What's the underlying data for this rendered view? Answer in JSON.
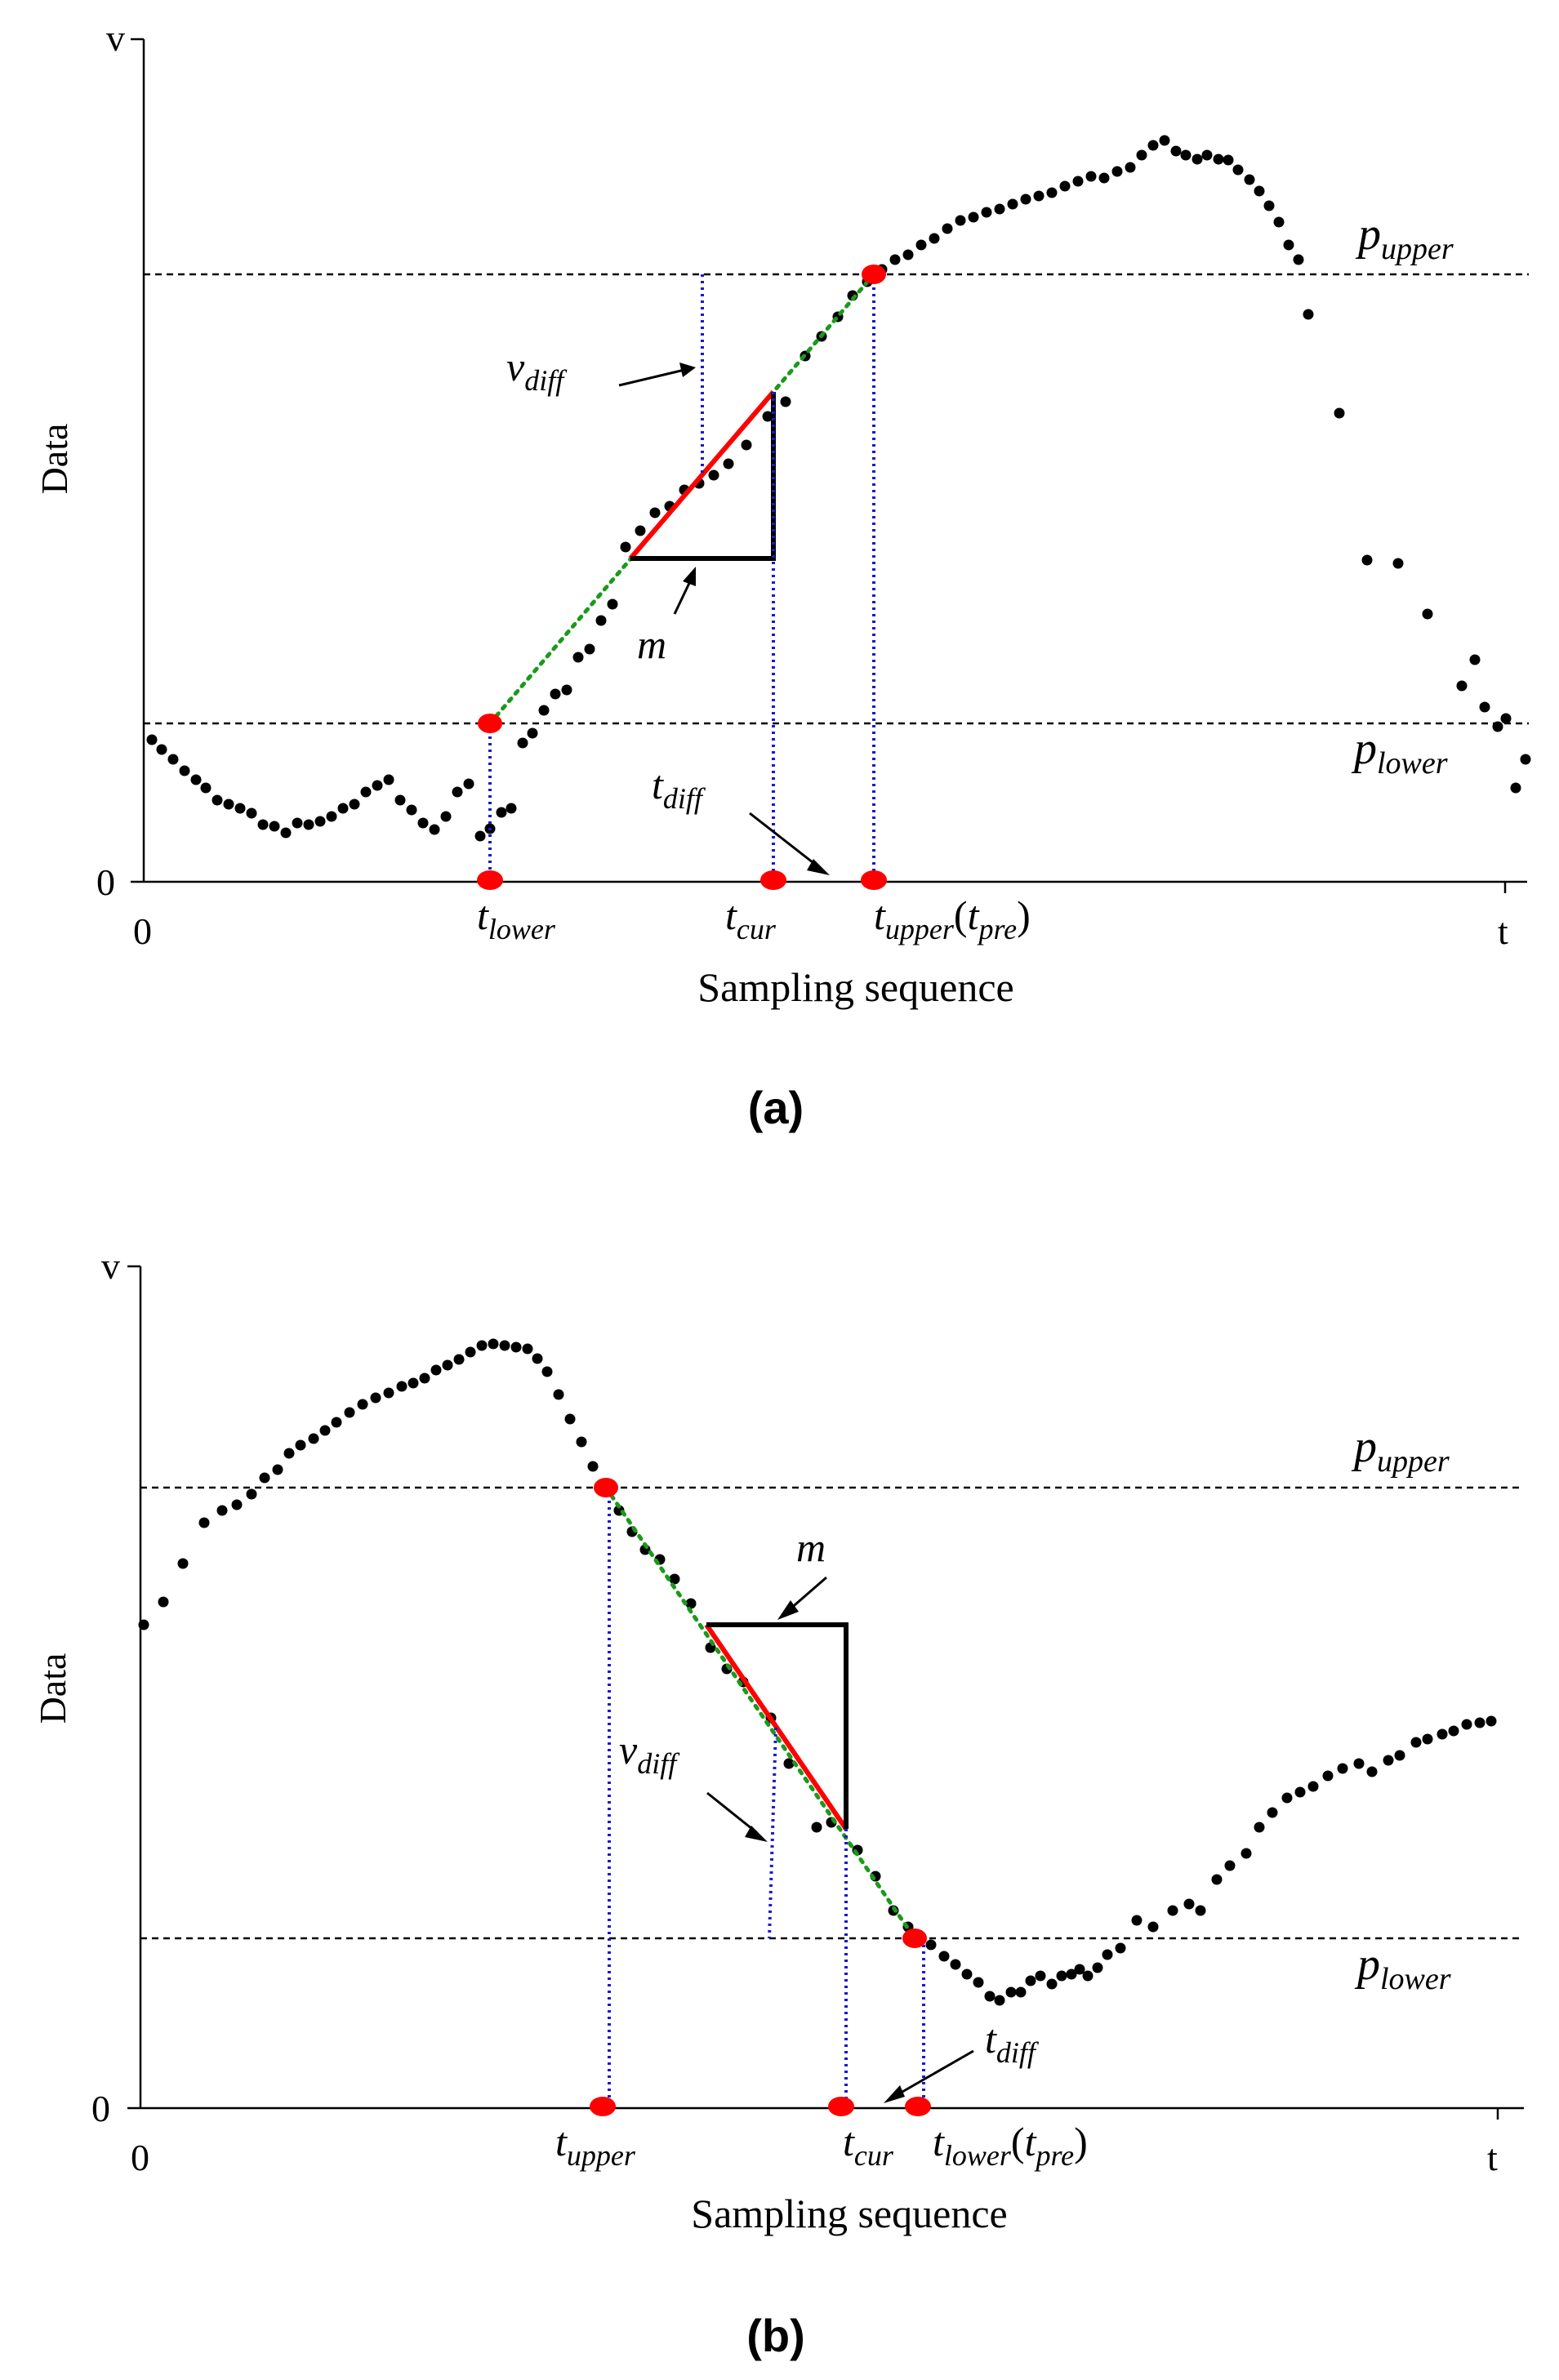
{
  "colors": {
    "axis": "#000000",
    "points": "#000000",
    "threshold": "#000000",
    "slope_segment": "#ff0000",
    "extrapolation": "#1a9a1a",
    "guide": "#1a1acc",
    "marker": "#ff0000",
    "triangle": "#000000"
  },
  "panels": [
    {
      "id": "a",
      "caption": "(a)",
      "y_axis_label": "Data",
      "x_axis_label": "Sampling sequence",
      "y_top_tick": "v",
      "y_zero_tick": "0",
      "x_zero_tick": "0",
      "x_end_tick": "t",
      "upper_label": {
        "base": "p",
        "sub": "upper"
      },
      "lower_label": {
        "base": "p",
        "sub": "lower"
      },
      "vdiff_label": {
        "base": "v",
        "sub": "diff"
      },
      "m_label": "m",
      "tdiff_label": {
        "base": "t",
        "sub": "diff"
      },
      "t_lower_label": {
        "base": "t",
        "sub": "lower"
      },
      "t_cur_label": {
        "base": "t",
        "sub": "cur"
      },
      "t_upper_label": {
        "base": "t",
        "sub": "upper",
        "paren_base": "t",
        "paren_sub": "pre"
      }
    },
    {
      "id": "b",
      "caption": "(b)",
      "y_axis_label": "Data",
      "x_axis_label": "Sampling sequence",
      "y_top_tick": "v",
      "y_zero_tick": "0",
      "x_zero_tick": "0",
      "x_end_tick": "t",
      "upper_label": {
        "base": "p",
        "sub": "upper"
      },
      "lower_label": {
        "base": "p",
        "sub": "lower"
      },
      "vdiff_label": {
        "base": "v",
        "sub": "diff"
      },
      "m_label": "m",
      "tdiff_label": {
        "base": "t",
        "sub": "diff"
      },
      "t_upper_label": {
        "base": "t",
        "sub": "upper"
      },
      "t_cur_label": {
        "base": "t",
        "sub": "cur"
      },
      "t_lower_label": {
        "base": "t",
        "sub": "lower",
        "paren_base": "t",
        "paren_sub": "pre"
      }
    }
  ]
}
